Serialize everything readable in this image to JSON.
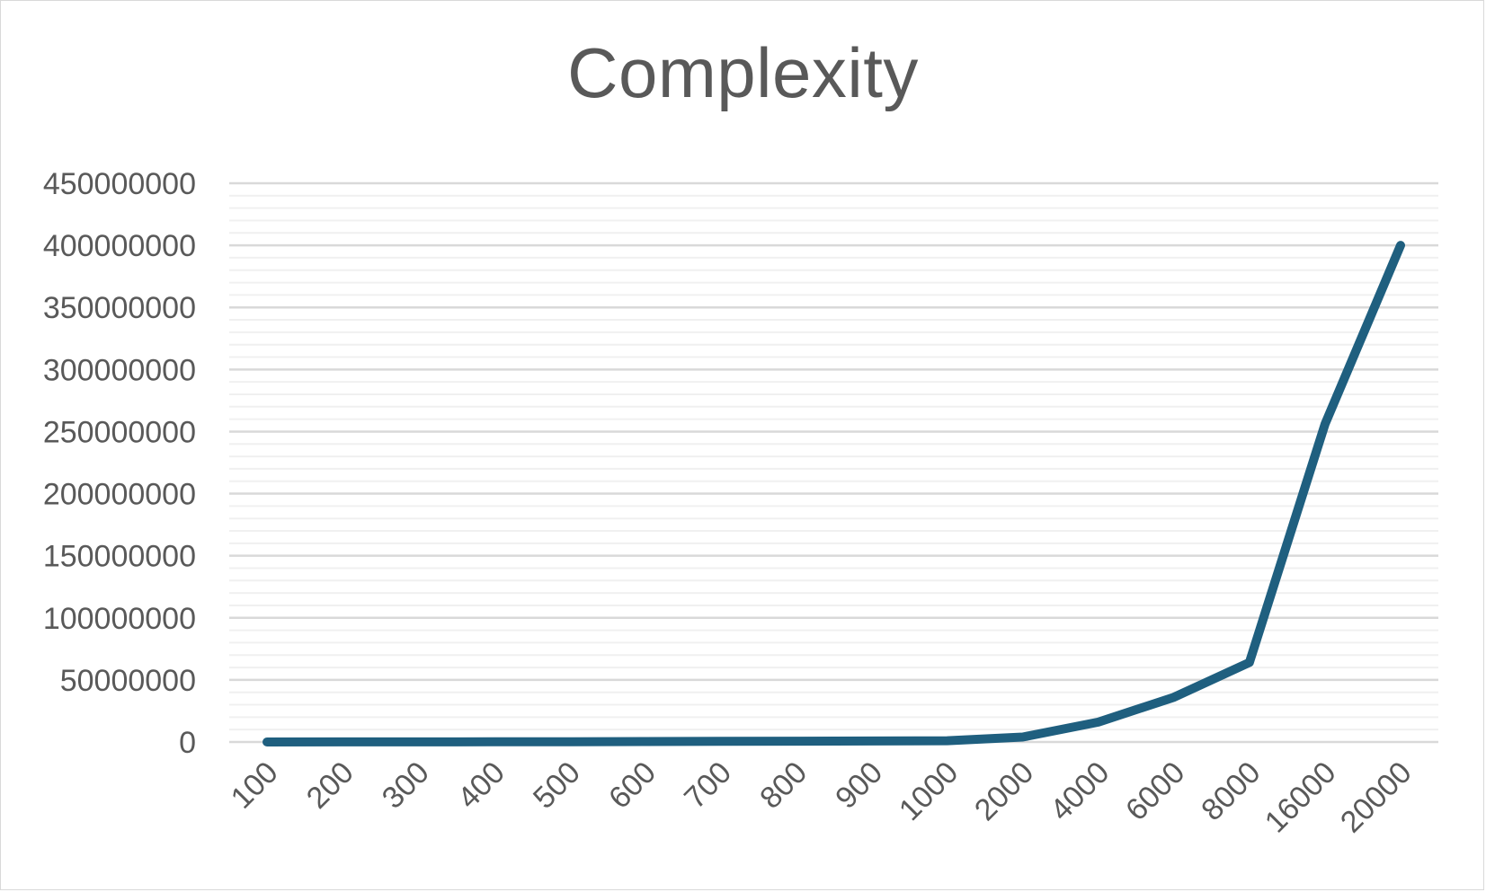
{
  "chart_data": {
    "type": "line",
    "title": "Complexity",
    "xlabel": "",
    "ylabel": "",
    "categories": [
      "100",
      "200",
      "300",
      "400",
      "500",
      "600",
      "700",
      "800",
      "900",
      "1000",
      "2000",
      "4000",
      "6000",
      "8000",
      "16000",
      "20000"
    ],
    "series": [
      {
        "values": [
          10000,
          40000,
          90000,
          160000,
          250000,
          360000,
          490000,
          640000,
          810000,
          1000000,
          4000000,
          16000000,
          36000000,
          64000000,
          256000000,
          400000000
        ],
        "color": "#1f5f7f"
      }
    ],
    "ylim": [
      0,
      450000000
    ],
    "y_ticks": [
      "0",
      "50000000",
      "100000000",
      "150000000",
      "200000000",
      "250000000",
      "300000000",
      "350000000",
      "400000000",
      "450000000"
    ],
    "y_tick_values": [
      0,
      50000000,
      100000000,
      150000000,
      200000000,
      250000000,
      300000000,
      350000000,
      400000000,
      450000000
    ],
    "major_gridlines": true,
    "minor_gridlines": true,
    "legend": "none",
    "colors": {
      "major_grid": "#d9d9d9",
      "minor_grid": "#f0f0f0",
      "text": "#595959",
      "line": "#1f5f7f"
    }
  }
}
